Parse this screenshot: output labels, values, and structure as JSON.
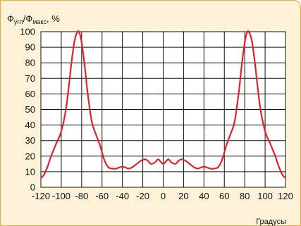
{
  "chart_data": {
    "type": "line",
    "ylabel": "Ф",
    "ylabel_sub1": "угл",
    "ylabel_mid": "/Ф",
    "ylabel_sub2": "макс",
    "ylabel_unit": ", %",
    "xlabel": "Градусы",
    "xlim": [
      -120,
      120
    ],
    "ylim": [
      0,
      100
    ],
    "x_ticks": [
      -120,
      -100,
      -80,
      -60,
      -40,
      -20,
      0,
      20,
      40,
      60,
      80,
      100,
      120
    ],
    "y_ticks": [
      0,
      10,
      20,
      30,
      40,
      50,
      60,
      70,
      80,
      90,
      100
    ],
    "grid": true,
    "line_color": "#e3202b",
    "series": [
      {
        "x": [
          -120,
          -117,
          -113,
          -110,
          -105,
          -100,
          -95,
          -90,
          -87,
          -84,
          -82,
          -80,
          -77,
          -74,
          -70,
          -66,
          -62,
          -58,
          -54,
          -50,
          -46,
          -42,
          -38,
          -34,
          -30,
          -26,
          -22,
          -18,
          -15,
          -12,
          -8,
          -5,
          -2,
          0,
          2,
          5,
          8,
          12,
          15,
          18,
          22,
          26,
          30,
          34,
          38,
          42,
          46,
          50,
          54,
          58,
          62,
          66,
          70,
          74,
          77,
          80,
          82,
          84,
          87,
          90,
          95,
          100,
          105,
          110,
          113,
          117,
          120
        ],
        "y": [
          6,
          8,
          14,
          20,
          28,
          36,
          52,
          80,
          94,
          100,
          99,
          93,
          78,
          60,
          42,
          34,
          27,
          18,
          13,
          12,
          12,
          13,
          13,
          12,
          13,
          15,
          17,
          18,
          17,
          15,
          16,
          18,
          16,
          15,
          16,
          18,
          16,
          15,
          17,
          18,
          17,
          15,
          13,
          12,
          13,
          13,
          12,
          12,
          13,
          18,
          27,
          34,
          42,
          60,
          78,
          93,
          99,
          100,
          94,
          80,
          52,
          36,
          28,
          20,
          14,
          8,
          6
        ]
      }
    ]
  }
}
